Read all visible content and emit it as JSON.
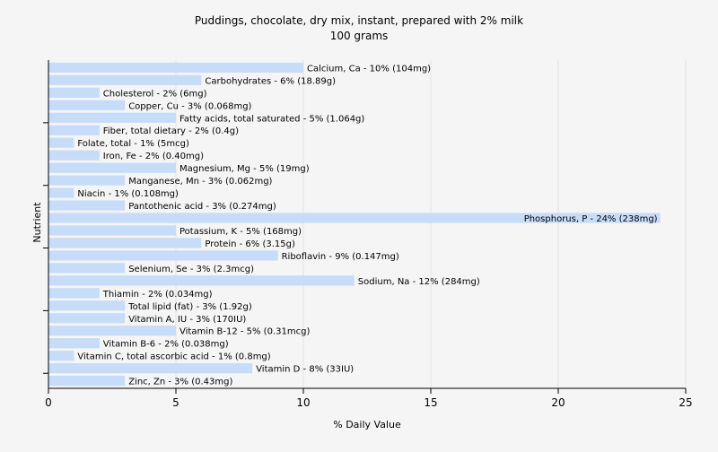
{
  "chart_data": {
    "type": "bar",
    "orientation": "horizontal",
    "title": "Puddings, chocolate, dry mix, instant, prepared with 2% milk",
    "subtitle": "100 grams",
    "xlabel": "% Daily Value",
    "ylabel": "Nutrient",
    "xlim": [
      0,
      25
    ],
    "xticks": [
      "0",
      "5",
      "10",
      "15",
      "20",
      "25"
    ],
    "grid": true,
    "bar_color": "#c6dcf8",
    "categories": [
      "Calcium, Ca",
      "Carbohydrates",
      "Cholesterol",
      "Copper, Cu",
      "Fatty acids, total saturated",
      "Fiber, total dietary",
      "Folate, total",
      "Iron, Fe",
      "Magnesium, Mg",
      "Manganese, Mn",
      "Niacin",
      "Pantothenic acid",
      "Phosphorus, P",
      "Potassium, K",
      "Protein",
      "Riboflavin",
      "Selenium, Se",
      "Sodium, Na",
      "Thiamin",
      "Total lipid (fat)",
      "Vitamin A, IU",
      "Vitamin B-12",
      "Vitamin B-6",
      "Vitamin C, total ascorbic acid",
      "Vitamin D",
      "Zinc, Zn"
    ],
    "values": [
      10,
      6,
      2,
      3,
      5,
      2,
      1,
      2,
      5,
      3,
      1,
      3,
      24,
      5,
      6,
      9,
      3,
      12,
      2,
      3,
      3,
      5,
      2,
      1,
      8,
      3
    ],
    "labels": [
      "Calcium, Ca - 10% (104mg)",
      "Carbohydrates - 6% (18.89g)",
      "Cholesterol - 2% (6mg)",
      "Copper, Cu - 3% (0.068mg)",
      "Fatty acids, total saturated - 5% (1.064g)",
      "Fiber, total dietary - 2% (0.4g)",
      "Folate, total - 1% (5mcg)",
      "Iron, Fe - 2% (0.40mg)",
      "Magnesium, Mg - 5% (19mg)",
      "Manganese, Mn - 3% (0.062mg)",
      "Niacin - 1% (0.108mg)",
      "Pantothenic acid - 3% (0.274mg)",
      "Phosphorus, P - 24% (238mg)",
      "Potassium, K - 5% (168mg)",
      "Protein - 6% (3.15g)",
      "Riboflavin - 9% (0.147mg)",
      "Selenium, Se - 3% (2.3mcg)",
      "Sodium, Na - 12% (284mg)",
      "Thiamin - 2% (0.034mg)",
      "Total lipid (fat) - 3% (1.92g)",
      "Vitamin A, IU - 3% (170IU)",
      "Vitamin B-12 - 5% (0.31mcg)",
      "Vitamin B-6 - 2% (0.038mg)",
      "Vitamin C, total ascorbic acid - 1% (0.8mg)",
      "Vitamin D - 8% (33IU)",
      "Zinc, Zn - 3% (0.43mg)"
    ]
  }
}
